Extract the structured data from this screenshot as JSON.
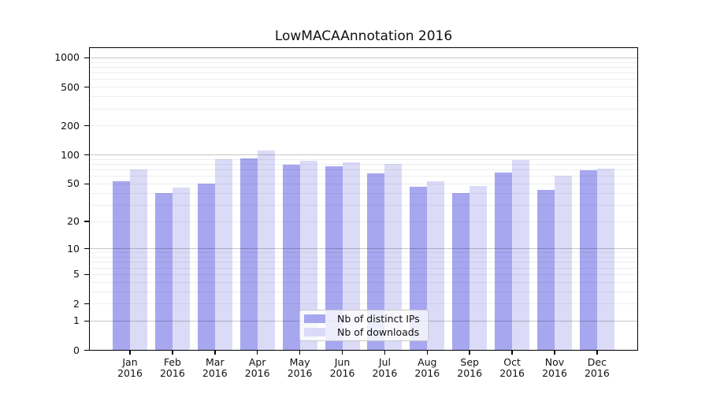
{
  "chart_data": {
    "type": "bar",
    "title": "LowMACAAnnotation 2016",
    "categories": [
      "Jan",
      "Feb",
      "Mar",
      "Apr",
      "May",
      "Jun",
      "Jul",
      "Aug",
      "Sep",
      "Oct",
      "Nov",
      "Dec"
    ],
    "category_year": "2016",
    "series": [
      {
        "name": "Nb of distinct IPs",
        "color": "#a7a7f0",
        "values": [
          53,
          40,
          50,
          93,
          79,
          76,
          65,
          47,
          40,
          66,
          43,
          69
        ]
      },
      {
        "name": "Nb of downloads",
        "color": "#dbdbf8",
        "values": [
          71,
          46,
          91,
          112,
          87,
          84,
          81,
          53,
          48,
          88,
          61,
          72
        ]
      }
    ],
    "y_ticks": [
      0,
      1,
      2,
      5,
      10,
      20,
      50,
      100,
      200,
      500,
      1000
    ],
    "y_scale": "log10(value+1)",
    "ylim": [
      0,
      1290
    ],
    "grid": true,
    "legend_position": "bottom-center"
  }
}
